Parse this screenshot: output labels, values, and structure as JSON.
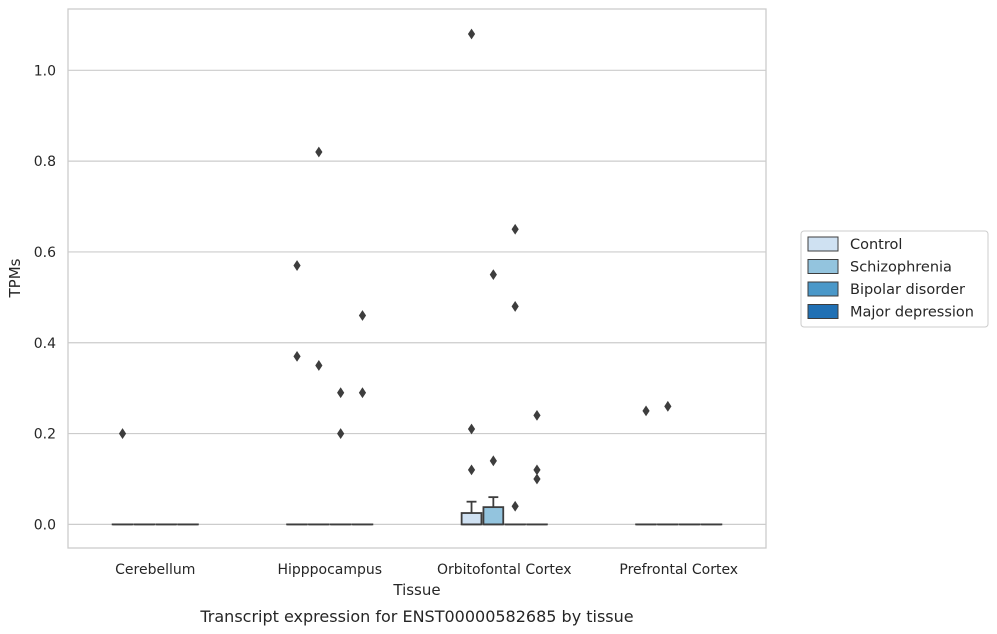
{
  "chart_data": {
    "type": "box",
    "title": "",
    "caption": "Transcript expression for ENST00000582685 by tissue",
    "xlabel": "Tissue",
    "ylabel": "TPMs",
    "ylim": [
      -0.052,
      1.135
    ],
    "yticks": [
      "0.0",
      "0.2",
      "0.4",
      "0.6",
      "0.8",
      "1.0"
    ],
    "grid": true,
    "legend_position": "right",
    "categories": [
      "Cerebellum",
      "Hipppocampus",
      "Orbitofontal Cortex",
      "Prefrontal Cortex"
    ],
    "series": [
      {
        "name": "Control",
        "color": "#cfe1f2",
        "boxes": [
          {
            "q1": 0,
            "median": 0,
            "q3": 0,
            "whisker_low": 0,
            "whisker_high": 0,
            "outliers": [
              0.2
            ]
          },
          {
            "q1": 0,
            "median": 0,
            "q3": 0,
            "whisker_low": 0,
            "whisker_high": 0,
            "outliers": [
              0.57,
              0.37
            ]
          },
          {
            "q1": 0,
            "median": 0,
            "q3": 0.025,
            "whisker_low": 0,
            "whisker_high": 0.05,
            "outliers": [
              1.08,
              0.21,
              0.12
            ]
          },
          {
            "q1": 0,
            "median": 0,
            "q3": 0,
            "whisker_low": 0,
            "whisker_high": 0,
            "outliers": [
              0.25
            ]
          }
        ]
      },
      {
        "name": "Schizophrenia",
        "color": "#93c4de",
        "boxes": [
          {
            "q1": 0,
            "median": 0,
            "q3": 0,
            "whisker_low": 0,
            "whisker_high": 0,
            "outliers": []
          },
          {
            "q1": 0,
            "median": 0,
            "q3": 0,
            "whisker_low": 0,
            "whisker_high": 0,
            "outliers": [
              0.82,
              0.35
            ]
          },
          {
            "q1": 0,
            "median": 0,
            "q3": 0.038,
            "whisker_low": 0,
            "whisker_high": 0.06,
            "outliers": [
              0.55,
              0.14
            ]
          },
          {
            "q1": 0,
            "median": 0,
            "q3": 0,
            "whisker_low": 0,
            "whisker_high": 0,
            "outliers": [
              0.26
            ]
          }
        ]
      },
      {
        "name": "Bipolar disorder",
        "color": "#4a98c9",
        "boxes": [
          {
            "q1": 0,
            "median": 0,
            "q3": 0,
            "whisker_low": 0,
            "whisker_high": 0,
            "outliers": []
          },
          {
            "q1": 0,
            "median": 0,
            "q3": 0,
            "whisker_low": 0,
            "whisker_high": 0,
            "outliers": [
              0.29,
              0.2
            ]
          },
          {
            "q1": 0,
            "median": 0,
            "q3": 0,
            "whisker_low": 0,
            "whisker_high": 0,
            "outliers": [
              0.65,
              0.48,
              0.04
            ]
          },
          {
            "q1": 0,
            "median": 0,
            "q3": 0,
            "whisker_low": 0,
            "whisker_high": 0,
            "outliers": []
          }
        ]
      },
      {
        "name": "Major depression",
        "color": "#2070b4",
        "boxes": [
          {
            "q1": 0,
            "median": 0,
            "q3": 0,
            "whisker_low": 0,
            "whisker_high": 0,
            "outliers": []
          },
          {
            "q1": 0,
            "median": 0,
            "q3": 0,
            "whisker_low": 0,
            "whisker_high": 0,
            "outliers": [
              0.46,
              0.29
            ]
          },
          {
            "q1": 0,
            "median": 0,
            "q3": 0,
            "whisker_low": 0,
            "whisker_high": 0,
            "outliers": [
              0.24,
              0.12,
              0.1
            ]
          },
          {
            "q1": 0,
            "median": 0,
            "q3": 0,
            "whisker_low": 0,
            "whisker_high": 0,
            "outliers": []
          }
        ]
      }
    ],
    "colors": {
      "grid": "#cccccc",
      "frame": "#cccccc",
      "box_edge": "#3d3d3d",
      "outlier": "#3d3d3d"
    }
  }
}
